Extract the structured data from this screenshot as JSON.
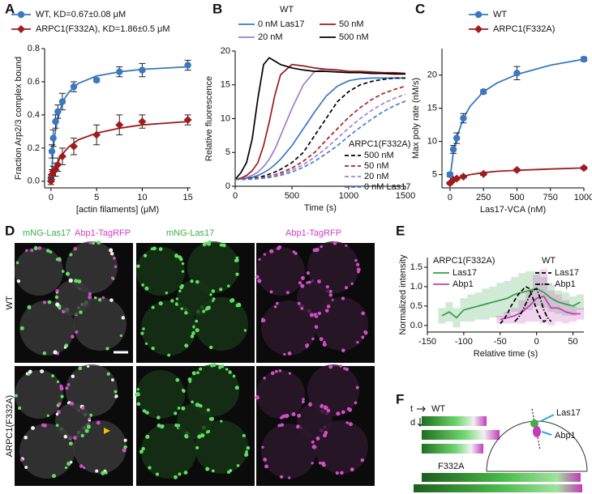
{
  "panels": [
    "A",
    "B",
    "C",
    "D",
    "E",
    "F"
  ],
  "microscopy": {
    "merge_labels": [
      "mNG-Las17",
      "Abp1-TagRFP"
    ],
    "column_labels": [
      "mNG-Las17",
      "Abp1-TagRFP"
    ],
    "row_labels": [
      "WT",
      "ARPC1(F332A)"
    ]
  },
  "kymograph": {
    "time_axis": "t",
    "distance_axis": "d",
    "groups": [
      "WT",
      "F332A"
    ],
    "diagram_labels": [
      "Las17",
      "Abp1"
    ]
  },
  "chart_data": [
    {
      "type": "scatter",
      "x_label": "[actin filaments] (μM)",
      "y_label": "Fraction Arp2/3 complex bound",
      "xlim": [
        -0.7,
        15.3
      ],
      "ylim": [
        -0.04,
        0.8
      ],
      "xticks": [
        0,
        5,
        10,
        15
      ],
      "yticks": [
        {
          "value": 0,
          "label": "0.0"
        },
        0.2,
        0.4,
        0.6,
        0.8
      ],
      "series": [
        {
          "name": "WT, KD=0.67±0.08 μM",
          "color": "#3a78c2",
          "marker": "circle",
          "x": [
            0,
            0.1,
            0.25,
            0.5,
            0.75,
            1.25,
            2.5,
            5,
            7.5,
            10,
            15
          ],
          "values": [
            0.02,
            0.18,
            0.26,
            0.36,
            0.42,
            0.48,
            0.57,
            0.61,
            0.66,
            0.67,
            0.7
          ],
          "errors": [
            0.02,
            0.04,
            0.05,
            0.04,
            0.04,
            0.05,
            0.03,
            0.01,
            0.03,
            0.04,
            0.03
          ],
          "fit_x": [
            0,
            0.25,
            0.5,
            1,
            1.5,
            2,
            3,
            5,
            7.5,
            10,
            15
          ],
          "fit_values": [
            0,
            0.2,
            0.31,
            0.43,
            0.5,
            0.54,
            0.59,
            0.635,
            0.66,
            0.675,
            0.69
          ]
        },
        {
          "name": "ARPC1(F332A), KD=1.86±0.5 μM",
          "color": "#a01c1c",
          "marker": "diamond",
          "x": [
            0,
            0.1,
            0.25,
            0.5,
            0.75,
            1.25,
            2.5,
            5,
            7.5,
            10,
            15
          ],
          "values": [
            0,
            0.04,
            0.06,
            0.07,
            0.1,
            0.15,
            0.21,
            0.28,
            0.34,
            0.36,
            0.37
          ],
          "errors": [
            0.02,
            0.03,
            0.03,
            0.04,
            0.04,
            0.05,
            0.05,
            0.06,
            0.06,
            0.04,
            0.03
          ],
          "fit_x": [
            0,
            0.25,
            0.5,
            1,
            1.5,
            2,
            3,
            5,
            7.5,
            10,
            15
          ],
          "fit_values": [
            0,
            0.047,
            0.085,
            0.14,
            0.18,
            0.21,
            0.25,
            0.29,
            0.32,
            0.34,
            0.36
          ]
        }
      ]
    },
    {
      "type": "line",
      "x_label": "Time (s)",
      "y_label": "Relative fluorescence",
      "xlim": [
        0,
        1500
      ],
      "ylim": [
        0,
        20
      ],
      "xticks": [
        0,
        500,
        1000,
        1500
      ],
      "yticks": [
        0,
        5,
        10,
        15,
        20
      ],
      "x": [
        0,
        50,
        100,
        150,
        200,
        250,
        300,
        350,
        400,
        500,
        600,
        700,
        800,
        900,
        1000,
        1100,
        1200,
        1300,
        1400,
        1500
      ],
      "groups": [
        {
          "name": "WT",
          "series": [
            {
              "name": "0 nM Las17",
              "color": "#3b78c4",
              "line_style": "solid",
              "values": [
                1,
                1.1,
                1.2,
                1.3,
                1.6,
                2,
                2.5,
                3.2,
                4,
                6,
                8.5,
                11,
                13.3,
                14.8,
                15.6,
                15.9,
                16,
                16,
                16,
                16
              ]
            },
            {
              "name": "20 nM",
              "color": "#a77bc8",
              "line_style": "solid",
              "values": [
                1,
                1.1,
                1.3,
                1.6,
                2.1,
                2.9,
                4,
                5.5,
                7.5,
                11.5,
                15,
                17,
                17.3,
                17.2,
                17,
                16.9,
                16.8,
                16.8,
                16.7,
                16.6
              ]
            },
            {
              "name": "50 nM",
              "color": "#9b1b1b",
              "line_style": "solid",
              "values": [
                1,
                1.2,
                1.6,
                2.3,
                3.5,
                6,
                9.5,
                13.5,
                16.5,
                18,
                17.8,
                17.5,
                17.3,
                17.2,
                17,
                17,
                16.9,
                16.8,
                16.8,
                16.7
              ]
            },
            {
              "name": "500 nM",
              "color": "#000000",
              "line_style": "solid",
              "values": [
                1,
                2,
                3.5,
                7,
                13,
                18,
                19,
                18.5,
                18,
                17.5,
                17.2,
                17,
                17,
                16.9,
                16.8,
                16.8,
                16.7,
                16.7,
                16.6,
                16.6
              ]
            }
          ]
        },
        {
          "name": "ARPC1(F332A)",
          "series": [
            {
              "name": "500 nM",
              "color": "#000000",
              "line_style": "dashed",
              "values": [
                1,
                1,
                1.1,
                1.2,
                1.3,
                1.5,
                1.8,
                2.1,
                2.5,
                3.5,
                5,
                7.5,
                10,
                12.5,
                14,
                15,
                15.5,
                15.8,
                16,
                16
              ]
            },
            {
              "name": "50 nM",
              "color": "#b02020",
              "line_style": "dashed",
              "values": [
                1,
                1,
                1.05,
                1.1,
                1.2,
                1.3,
                1.5,
                1.7,
                2,
                2.7,
                3.7,
                5,
                6.8,
                8.5,
                10.2,
                11.6,
                12.8,
                13.7,
                14.3,
                14.8
              ]
            },
            {
              "name": "20 nM",
              "color": "#a580d0",
              "line_style": "dashed",
              "values": [
                1,
                1,
                1,
                1.1,
                1.15,
                1.25,
                1.4,
                1.6,
                1.8,
                2.4,
                3.2,
                4.3,
                5.6,
                7.1,
                8.6,
                10,
                11.2,
                12.2,
                13,
                13.6
              ]
            },
            {
              "name": "0 nM Las17",
              "color": "#4a7fd0",
              "line_style": "dashed",
              "values": [
                1,
                1,
                1,
                1.05,
                1.1,
                1.2,
                1.3,
                1.45,
                1.6,
                2.1,
                2.8,
                3.7,
                4.8,
                6,
                7.4,
                8.7,
                9.9,
                11,
                11.9,
                12.6
              ]
            }
          ]
        }
      ]
    },
    {
      "type": "scatter",
      "x_label": "Las17-VCA (nM)",
      "y_label": "Max poly rate (nM/s)",
      "xlim": [
        -60,
        1000
      ],
      "ylim": [
        3,
        24
      ],
      "xticks": [
        0,
        250,
        500,
        750,
        1000
      ],
      "yticks": [
        5,
        10,
        15,
        20
      ],
      "series": [
        {
          "name": "WT",
          "color": "#3a78c2",
          "marker": "circle",
          "x": [
            0,
            25,
            50,
            100,
            250,
            500,
            1000
          ],
          "values": [
            5,
            8.8,
            10.5,
            13.5,
            17.5,
            20.3,
            22.4
          ],
          "errors": [
            0.3,
            0.6,
            0.8,
            0.7,
            0.3,
            1,
            0.3
          ],
          "fit_x": [
            0,
            25,
            50,
            100,
            150,
            250,
            350,
            500,
            750,
            1000
          ],
          "fit_values": [
            4.5,
            8.3,
            10.6,
            13.5,
            15.3,
            17.5,
            18.8,
            20.1,
            21.5,
            22.4
          ]
        },
        {
          "name": "ARPC1(F332A)",
          "color": "#a01c1c",
          "marker": "diamond",
          "x": [
            0,
            25,
            50,
            100,
            250,
            500,
            1000
          ],
          "values": [
            3.7,
            4.2,
            4.4,
            4.7,
            5.1,
            5.7,
            6
          ],
          "errors": [
            0.2,
            0.2,
            0.2,
            0.2,
            0.2,
            0.2,
            0.2
          ],
          "fit_x": [
            0,
            25,
            50,
            100,
            150,
            250,
            350,
            500,
            750,
            1000
          ],
          "fit_values": [
            3.7,
            4.1,
            4.4,
            4.75,
            5,
            5.3,
            5.5,
            5.65,
            5.85,
            6
          ]
        }
      ]
    },
    {
      "type": "line",
      "x_label": "Relative time (s)",
      "y_label": "Normalized intensity",
      "xlim": [
        -150,
        65
      ],
      "ylim": [
        -0.17,
        1.75
      ],
      "xticks": [
        -150,
        -100,
        -50,
        0,
        50
      ],
      "yticks": [
        {
          "value": 0,
          "label": "0.0"
        },
        0.5,
        {
          "value": 1,
          "label": "1.0"
        },
        1.5
      ],
      "groups": [
        {
          "name": "ARPC1(F332A)",
          "series": [
            {
              "name": "Las17",
              "color": "#2ea043",
              "line_style": "solid",
              "x": [
                -130,
                -120,
                -110,
                -100,
                -90,
                -80,
                -70,
                -60,
                -50,
                -40,
                -30,
                -20,
                -10,
                0,
                10,
                20,
                30,
                40,
                50,
                60
              ],
              "values": [
                0.25,
                0.35,
                0.2,
                0.4,
                0.45,
                0.5,
                0.55,
                0.6,
                0.65,
                0.7,
                0.8,
                0.85,
                0.9,
                0.95,
                0.85,
                0.7,
                0.6,
                0.55,
                0.5,
                0.6
              ],
              "errors": [
                0.2,
                0.25,
                0.25,
                0.3,
                0.35,
                0.35,
                0.4,
                0.4,
                0.45,
                0.45,
                0.45,
                0.5,
                0.5,
                0.45,
                0.4,
                0.35,
                0.3,
                0.3,
                0.25,
                0.2
              ]
            },
            {
              "name": "Abp1",
              "color": "#c23cb4",
              "line_style": "solid",
              "x": [
                -50,
                -40,
                -30,
                -20,
                -10,
                0,
                10,
                20,
                30,
                40,
                50,
                60
              ],
              "values": [
                0.15,
                0.2,
                0.25,
                0.35,
                0.5,
                0.7,
                0.75,
                0.45,
                0.45,
                0.35,
                0.3,
                0.3
              ],
              "errors": [
                0.1,
                0.15,
                0.2,
                0.3,
                0.4,
                0.6,
                0.7,
                0.45,
                0.35,
                0.3,
                0.2,
                0.15
              ]
            }
          ]
        },
        {
          "name": "WT",
          "series": [
            {
              "name": "Las17",
              "color": "#000000",
              "line_style": "dashed",
              "x": [
                -50,
                -45,
                -40,
                -35,
                -30,
                -25,
                -20,
                -15,
                -10,
                -5,
                0,
                5,
                10,
                15
              ],
              "values": [
                0.05,
                0.15,
                0.3,
                0.5,
                0.65,
                0.8,
                0.9,
                1,
                0.95,
                0.7,
                0.4,
                0.2,
                0.1,
                0.15
              ]
            },
            {
              "name": "Abp1",
              "color": "#000000",
              "line_style": "dashdot",
              "x": [
                -30,
                -25,
                -20,
                -15,
                -10,
                -5,
                0,
                5,
                10,
                15,
                20
              ],
              "values": [
                0.1,
                0.2,
                0.35,
                0.55,
                0.75,
                0.9,
                0.95,
                0.7,
                0.4,
                0.2,
                0.1
              ]
            }
          ]
        }
      ]
    }
  ]
}
